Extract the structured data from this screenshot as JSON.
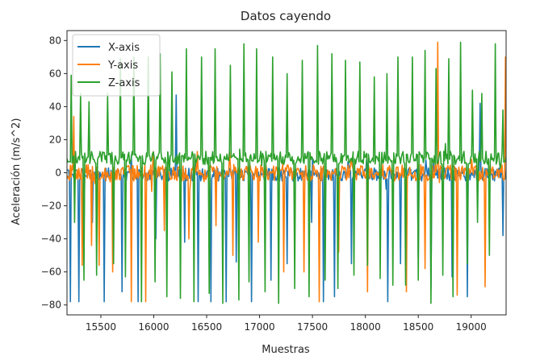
{
  "chart_data": {
    "type": "line",
    "title": "Datos cayendo",
    "xlabel": "Muestras",
    "ylabel": "Aceleración (m/s^2)",
    "xlim": [
      15180,
      19330
    ],
    "ylim": [
      -86,
      86
    ],
    "xticks": [
      15500,
      16000,
      16500,
      17000,
      17500,
      18000,
      18500,
      19000
    ],
    "yticks": [
      -80,
      -60,
      -40,
      -20,
      0,
      20,
      40,
      60,
      80
    ],
    "grid": false,
    "legend": "top-left",
    "series": [
      {
        "name": "X-axis",
        "color": "#1f77b4",
        "baseline": -1,
        "noise": 4,
        "spikes": [
          [
            15210,
            -78
          ],
          [
            15290,
            -78
          ],
          [
            15340,
            -38
          ],
          [
            15420,
            -30
          ],
          [
            15530,
            -78
          ],
          [
            15700,
            -72
          ],
          [
            15850,
            -78
          ],
          [
            16020,
            -40
          ],
          [
            16210,
            47
          ],
          [
            16290,
            -42
          ],
          [
            16420,
            -78
          ],
          [
            16540,
            -78
          ],
          [
            16680,
            -78
          ],
          [
            16780,
            -54
          ],
          [
            16920,
            -78
          ],
          [
            17110,
            -65
          ],
          [
            17260,
            -55
          ],
          [
            17490,
            -30
          ],
          [
            17600,
            -78
          ],
          [
            17710,
            -75
          ],
          [
            17870,
            -55
          ],
          [
            18210,
            -78
          ],
          [
            18330,
            -55
          ],
          [
            18500,
            -52
          ],
          [
            18620,
            -70
          ],
          [
            18820,
            -63
          ],
          [
            18960,
            -75
          ],
          [
            19080,
            42
          ],
          [
            19300,
            -38
          ]
        ]
      },
      {
        "name": "Y-axis",
        "color": "#ff7f0e",
        "baseline": 0,
        "noise": 5,
        "spikes": [
          [
            15240,
            34
          ],
          [
            15320,
            -56
          ],
          [
            15410,
            -44
          ],
          [
            15480,
            -56
          ],
          [
            15610,
            -60
          ],
          [
            15790,
            -78
          ],
          [
            15920,
            -78
          ],
          [
            16100,
            -35
          ],
          [
            16330,
            -40
          ],
          [
            16590,
            -32
          ],
          [
            16750,
            -50
          ],
          [
            16990,
            -42
          ],
          [
            17230,
            -60
          ],
          [
            17420,
            -60
          ],
          [
            17560,
            -78
          ],
          [
            17750,
            -48
          ],
          [
            18020,
            -72
          ],
          [
            18390,
            -72
          ],
          [
            18560,
            -58
          ],
          [
            18680,
            79
          ],
          [
            18870,
            -74
          ],
          [
            19130,
            -69
          ],
          [
            19320,
            70
          ]
        ]
      },
      {
        "name": "Z-axis",
        "color": "#2ca02c",
        "baseline": 9,
        "noise": 4,
        "spikes": [
          [
            15220,
            59
          ],
          [
            15250,
            -30
          ],
          [
            15310,
            48
          ],
          [
            15340,
            -65
          ],
          [
            15390,
            43
          ],
          [
            15460,
            -62
          ],
          [
            15560,
            48
          ],
          [
            15620,
            -55
          ],
          [
            15680,
            69
          ],
          [
            15730,
            -63
          ],
          [
            15810,
            70
          ],
          [
            15880,
            -78
          ],
          [
            15950,
            70
          ],
          [
            16010,
            -66
          ],
          [
            16060,
            72
          ],
          [
            16120,
            -75
          ],
          [
            16170,
            61
          ],
          [
            16250,
            -76
          ],
          [
            16310,
            75
          ],
          [
            16380,
            -78
          ],
          [
            16450,
            70
          ],
          [
            16520,
            -73
          ],
          [
            16580,
            75
          ],
          [
            16650,
            -79
          ],
          [
            16720,
            65
          ],
          [
            16800,
            -77
          ],
          [
            16850,
            78
          ],
          [
            16900,
            -66
          ],
          [
            16970,
            75
          ],
          [
            17050,
            -72
          ],
          [
            17120,
            70
          ],
          [
            17180,
            -79
          ],
          [
            17260,
            60
          ],
          [
            17330,
            -70
          ],
          [
            17400,
            68
          ],
          [
            17470,
            -75
          ],
          [
            17550,
            77
          ],
          [
            17620,
            -65
          ],
          [
            17680,
            72
          ],
          [
            17740,
            -70
          ],
          [
            17810,
            68
          ],
          [
            17890,
            -62
          ],
          [
            17950,
            67
          ],
          [
            18020,
            -56
          ],
          [
            18080,
            58
          ],
          [
            18140,
            -64
          ],
          [
            18200,
            60
          ],
          [
            18260,
            -68
          ],
          [
            18310,
            70
          ],
          [
            18380,
            -68
          ],
          [
            18440,
            70
          ],
          [
            18500,
            -65
          ],
          [
            18560,
            74
          ],
          [
            18620,
            -79
          ],
          [
            18670,
            63
          ],
          [
            18730,
            -62
          ],
          [
            18790,
            69
          ],
          [
            18830,
            -75
          ],
          [
            18900,
            79
          ],
          [
            18960,
            -55
          ],
          [
            19010,
            50
          ],
          [
            19060,
            -30
          ],
          [
            19100,
            48
          ],
          [
            19170,
            -50
          ],
          [
            19230,
            78
          ],
          [
            19300,
            38
          ]
        ]
      }
    ]
  }
}
